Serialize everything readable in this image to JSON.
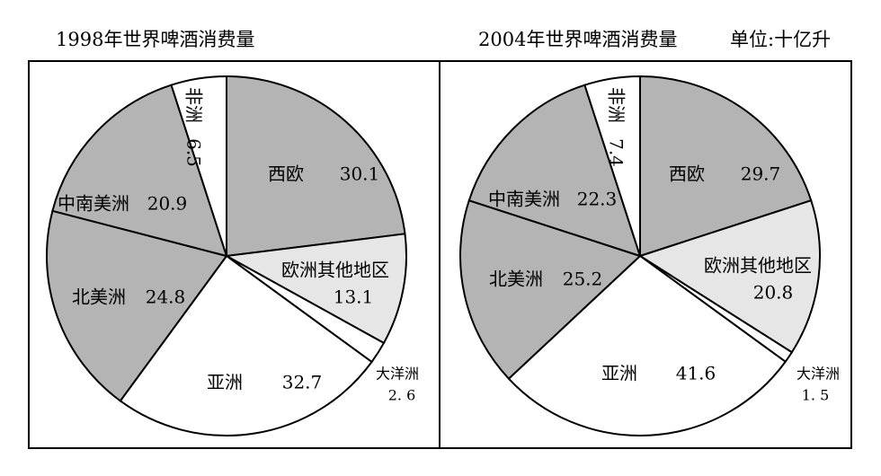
{
  "unit_label": "单位:十亿升",
  "chart_data": [
    {
      "type": "pie",
      "title": "1998年世界啤酒消费量",
      "slices": [
        {
          "label": "西欧",
          "value": 30.1,
          "color": "#b4b4b4"
        },
        {
          "label": "欧洲其他地区",
          "value": 13.1,
          "color": "#e6e6e6"
        },
        {
          "label": "大洋洲",
          "value": 2.6,
          "color": "#ffffff"
        },
        {
          "label": "亚洲",
          "value": 32.7,
          "color": "#ffffff"
        },
        {
          "label": "北美洲",
          "value": 24.8,
          "color": "#b4b4b4"
        },
        {
          "label": "中南美洲",
          "value": 20.9,
          "color": "#b4b4b4"
        },
        {
          "label": "非洲",
          "value": 6.5,
          "color": "#ffffff"
        }
      ],
      "value_labels": [
        "30.1",
        "13.1",
        "2. 6",
        "32.7",
        "24.8",
        "20.9",
        "6.5"
      ]
    },
    {
      "type": "pie",
      "title": "2004年世界啤酒消费量",
      "slices": [
        {
          "label": "西欧",
          "value": 29.7,
          "color": "#b4b4b4"
        },
        {
          "label": "欧洲其他地区",
          "value": 20.8,
          "color": "#e6e6e6"
        },
        {
          "label": "大洋洲",
          "value": 1.5,
          "color": "#ffffff"
        },
        {
          "label": "亚洲",
          "value": 41.6,
          "color": "#ffffff"
        },
        {
          "label": "北美洲",
          "value": 25.2,
          "color": "#b4b4b4"
        },
        {
          "label": "中南美洲",
          "value": 22.3,
          "color": "#b4b4b4"
        },
        {
          "label": "非洲",
          "value": 7.4,
          "color": "#ffffff"
        }
      ],
      "value_labels": [
        "29.7",
        "20.8",
        "1. 5",
        "41.6",
        "25.2",
        "22.3",
        "7.4"
      ]
    }
  ]
}
